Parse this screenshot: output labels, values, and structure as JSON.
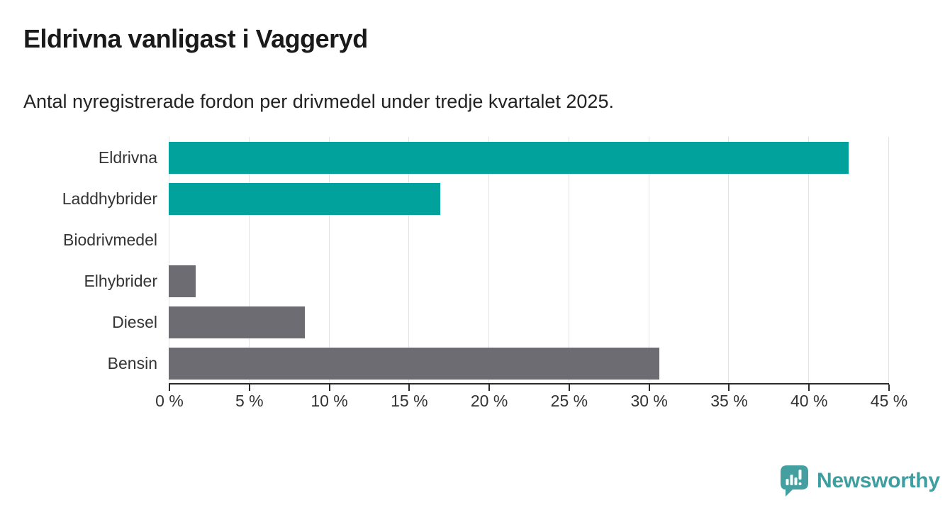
{
  "header": {
    "title": "Eldrivna vanligast i Vaggeryd",
    "subtitle": "Antal nyregistrerade fordon per drivmedel under tredje kvartalet 2025."
  },
  "chart_data": {
    "type": "bar",
    "orientation": "horizontal",
    "title": "Eldrivna vanligast i Vaggeryd",
    "subtitle": "Antal nyregistrerade fordon per drivmedel under tredje kvartalet 2025.",
    "categories": [
      "Eldrivna",
      "Laddhybrider",
      "Biodrivmedel",
      "Elhybrider",
      "Diesel",
      "Bensin"
    ],
    "values": [
      42.5,
      17.0,
      0,
      1.7,
      8.5,
      30.7
    ],
    "unit": "%",
    "bar_colors": [
      "#00a29b",
      "#00a29b",
      "#00a29b",
      "#6c6c72",
      "#6c6c72",
      "#6c6c72"
    ],
    "xlabel": "",
    "ylabel": "",
    "xlim": [
      0,
      45
    ],
    "x_tick_values": [
      0,
      5,
      10,
      15,
      20,
      25,
      30,
      35,
      40,
      45
    ],
    "x_tick_labels": [
      "0 %",
      "5 %",
      "10 %",
      "15 %",
      "20 %",
      "25 %",
      "30 %",
      "35 %",
      "40 %",
      "45 %"
    ],
    "grid": true,
    "legend": false
  },
  "colors": {
    "electric_teal": "#00a29b",
    "fossil_gray": "#6c6c72",
    "gridline": "#e3e3e3",
    "axis": "#2b2b2b",
    "brand": "#3f9fa0"
  },
  "footer": {
    "brand": "Newsworthy",
    "logo_icon": "newsworthy-speech-bubble-bar-chart-icon"
  }
}
